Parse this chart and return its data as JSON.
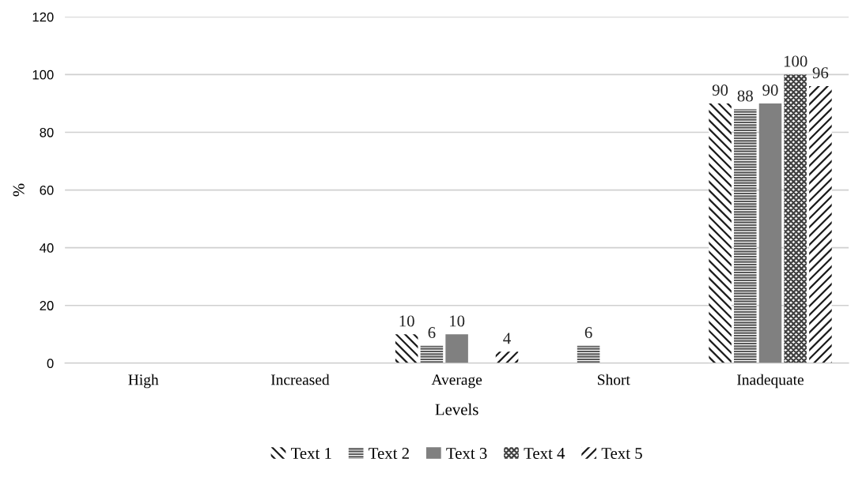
{
  "chart_data": {
    "type": "bar",
    "xlabel": "Levels",
    "ylabel": "%",
    "categories": [
      "High",
      "Increased",
      "Average",
      "Short",
      "Inadequate"
    ],
    "series": [
      {
        "name": "Text 1",
        "color": "#1a1a1a",
        "values": [
          0,
          0,
          10,
          0,
          90
        ],
        "value_labels": [
          null,
          null,
          "10",
          null,
          "90"
        ]
      },
      {
        "name": "Text 2",
        "color": "#595959",
        "values": [
          0,
          0,
          6,
          6,
          88
        ],
        "value_labels": [
          null,
          null,
          "6",
          "6",
          "88"
        ]
      },
      {
        "name": "Text 3",
        "color": "#808080",
        "values": [
          0,
          0,
          10,
          0,
          90
        ],
        "value_labels": [
          null,
          null,
          "10",
          null,
          "90"
        ]
      },
      {
        "name": "Text 4",
        "color": "#404040",
        "values": [
          0,
          0,
          0,
          0,
          100
        ],
        "value_labels": [
          null,
          null,
          null,
          null,
          "100"
        ]
      },
      {
        "name": "Text 5",
        "color": "#1a1a1a",
        "values": [
          0,
          0,
          4,
          0,
          96
        ],
        "value_labels": [
          null,
          null,
          "4",
          null,
          "96"
        ]
      }
    ],
    "ylim": [
      0,
      120
    ],
    "yticks": [
      0,
      20,
      40,
      60,
      80,
      100,
      120
    ],
    "grid": "y",
    "legend": "bottom"
  }
}
